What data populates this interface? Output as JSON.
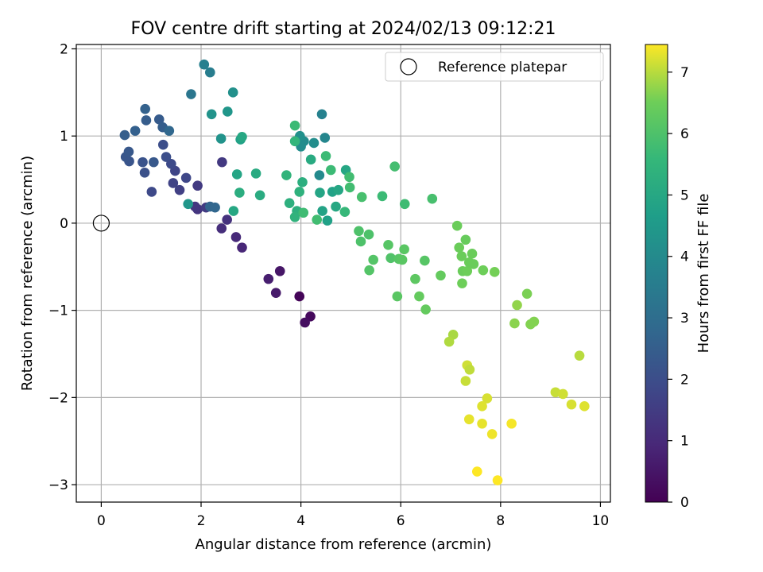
{
  "chart_data": {
    "type": "scatter",
    "title": "FOV centre drift starting at 2024/02/13 09:12:21",
    "xlabel": "Angular distance from reference (arcmin)",
    "ylabel": "Rotation from reference (arcmin)",
    "colorbar_label": "Hours from first FF file",
    "xlim": [
      -0.5,
      10.2
    ],
    "ylim": [
      -3.2,
      2.05
    ],
    "clim": [
      0,
      7.45
    ],
    "colormap": "viridis",
    "grid": true,
    "legend_placement": "top-right",
    "xticks": [
      0,
      2,
      4,
      6,
      8,
      10
    ],
    "xtick_labels": [
      "0",
      "2",
      "4",
      "6",
      "8",
      "10"
    ],
    "yticks": [
      -3,
      -2,
      -1,
      0,
      1,
      2
    ],
    "ytick_labels": [
      "−3",
      "−2",
      "−1",
      "0",
      "1",
      "2"
    ],
    "cticks": [
      0,
      1,
      2,
      3,
      4,
      5,
      6,
      7
    ],
    "ctick_labels": [
      "0",
      "1",
      "2",
      "3",
      "4",
      "5",
      "6",
      "7"
    ],
    "reference": {
      "label": "Reference platepar",
      "x": 0,
      "y": 0
    },
    "points": [
      [
        3.97,
        -0.84,
        0.1
      ],
      [
        4.19,
        -1.07,
        0.2
      ],
      [
        4.08,
        -1.14,
        0.3
      ],
      [
        3.58,
        -0.55,
        0.5
      ],
      [
        3.5,
        -0.8,
        0.6
      ],
      [
        3.35,
        -0.64,
        0.7
      ],
      [
        2.82,
        -0.28,
        0.9
      ],
      [
        2.7,
        -0.16,
        1.0
      ],
      [
        2.41,
        -0.06,
        1.1
      ],
      [
        2.52,
        0.04,
        1.2
      ],
      [
        1.93,
        0.16,
        1.3
      ],
      [
        1.88,
        0.19,
        1.35
      ],
      [
        2.42,
        0.7,
        1.4
      ],
      [
        1.93,
        0.43,
        1.45
      ],
      [
        2.1,
        0.18,
        1.5
      ],
      [
        1.57,
        0.38,
        1.6
      ],
      [
        1.44,
        0.46,
        1.7
      ],
      [
        1.48,
        0.6,
        1.75
      ],
      [
        1.7,
        0.52,
        1.8
      ],
      [
        1.01,
        0.36,
        1.85
      ],
      [
        1.4,
        0.68,
        1.9
      ],
      [
        1.3,
        0.76,
        2.0
      ],
      [
        1.24,
        0.9,
        2.0
      ],
      [
        0.87,
        0.58,
        2.1
      ],
      [
        0.83,
        0.7,
        2.15
      ],
      [
        0.56,
        0.71,
        2.2
      ],
      [
        0.49,
        0.76,
        2.25
      ],
      [
        0.55,
        0.82,
        2.3
      ],
      [
        1.05,
        0.7,
        2.3
      ],
      [
        1.16,
        1.19,
        2.4
      ],
      [
        0.9,
        1.18,
        2.45
      ],
      [
        1.23,
        1.1,
        2.5
      ],
      [
        0.47,
        1.01,
        2.5
      ],
      [
        0.68,
        1.06,
        2.55
      ],
      [
        0.88,
        1.31,
        2.6
      ],
      [
        2.18,
        0.19,
        2.7
      ],
      [
        2.28,
        0.18,
        2.75
      ],
      [
        1.36,
        1.06,
        2.8
      ],
      [
        1.8,
        1.48,
        3.3
      ],
      [
        2.06,
        1.82,
        3.6
      ],
      [
        2.18,
        1.73,
        3.55
      ],
      [
        4.42,
        1.25,
        3.7
      ],
      [
        4.48,
        0.98,
        3.85
      ],
      [
        4.26,
        0.92,
        4.1
      ],
      [
        4.06,
        0.94,
        4.05
      ],
      [
        4.37,
        0.55,
        4.0
      ],
      [
        4.0,
        0.88,
        4.1
      ],
      [
        3.98,
        1.0,
        4.2
      ],
      [
        2.64,
        1.5,
        4.2
      ],
      [
        2.21,
        1.25,
        4.3
      ],
      [
        2.4,
        0.97,
        4.3
      ],
      [
        2.53,
        1.28,
        4.4
      ],
      [
        1.74,
        0.22,
        4.4
      ],
      [
        2.79,
        0.96,
        4.8
      ],
      [
        2.72,
        0.56,
        4.9
      ],
      [
        2.65,
        0.14,
        5.0
      ],
      [
        2.82,
        0.99,
        5.0
      ],
      [
        3.1,
        0.57,
        5.1
      ],
      [
        3.18,
        0.32,
        5.15
      ],
      [
        2.77,
        0.35,
        5.2
      ],
      [
        4.38,
        0.35,
        4.9
      ],
      [
        4.43,
        0.14,
        4.85
      ],
      [
        4.53,
        0.03,
        4.75
      ],
      [
        4.63,
        0.36,
        4.8
      ],
      [
        4.75,
        0.38,
        4.95
      ],
      [
        4.9,
        0.61,
        4.95
      ],
      [
        4.7,
        0.19,
        5.0
      ],
      [
        4.2,
        0.73,
        5.1
      ],
      [
        4.03,
        0.47,
        5.25
      ],
      [
        3.92,
        0.14,
        5.3
      ],
      [
        3.88,
        0.07,
        5.4
      ],
      [
        3.97,
        0.36,
        5.35
      ],
      [
        3.77,
        0.23,
        5.3
      ],
      [
        3.71,
        0.55,
        5.45
      ],
      [
        3.88,
        0.94,
        5.5
      ],
      [
        3.88,
        1.12,
        5.7
      ],
      [
        4.05,
        0.12,
        5.75
      ],
      [
        4.32,
        0.04,
        5.8
      ],
      [
        4.5,
        0.77,
        5.7
      ],
      [
        4.6,
        0.61,
        5.7
      ],
      [
        4.88,
        0.13,
        5.6
      ],
      [
        4.97,
        0.53,
        5.8
      ],
      [
        4.98,
        0.41,
        5.8
      ],
      [
        5.16,
        -0.09,
        6.0
      ],
      [
        5.2,
        -0.21,
        6.0
      ],
      [
        5.22,
        0.3,
        5.9
      ],
      [
        5.36,
        -0.13,
        6.0
      ],
      [
        5.63,
        0.31,
        5.7
      ],
      [
        5.88,
        0.65,
        5.85
      ],
      [
        6.08,
        0.22,
        5.75
      ],
      [
        6.63,
        0.28,
        5.9
      ],
      [
        5.37,
        -0.54,
        6.1
      ],
      [
        5.45,
        -0.42,
        6.1
      ],
      [
        5.75,
        -0.25,
        6.15
      ],
      [
        5.8,
        -0.4,
        6.05
      ],
      [
        5.93,
        -0.84,
        6.2
      ],
      [
        5.96,
        -0.41,
        6.15
      ],
      [
        6.03,
        -0.42,
        6.2
      ],
      [
        6.07,
        -0.3,
        6.2
      ],
      [
        6.29,
        -0.64,
        6.25
      ],
      [
        6.37,
        -0.84,
        6.35
      ],
      [
        6.48,
        -0.43,
        6.15
      ],
      [
        6.5,
        -0.99,
        6.35
      ],
      [
        6.8,
        -0.6,
        6.35
      ],
      [
        7.13,
        -0.03,
        6.45
      ],
      [
        7.17,
        -0.28,
        6.45
      ],
      [
        7.22,
        -0.38,
        6.45
      ],
      [
        7.24,
        -0.55,
        6.45
      ],
      [
        7.3,
        -0.19,
        6.4
      ],
      [
        7.33,
        -0.55,
        6.5
      ],
      [
        7.37,
        -0.45,
        6.45
      ],
      [
        7.43,
        -0.35,
        6.45
      ],
      [
        7.46,
        -0.47,
        6.45
      ],
      [
        7.65,
        -0.54,
        6.5
      ],
      [
        7.88,
        -0.56,
        6.55
      ],
      [
        7.23,
        -0.69,
        6.5
      ],
      [
        8.33,
        -0.94,
        6.75
      ],
      [
        8.53,
        -0.81,
        6.6
      ],
      [
        8.28,
        -1.15,
        6.7
      ],
      [
        8.6,
        -1.16,
        6.65
      ],
      [
        8.67,
        -1.13,
        6.65
      ],
      [
        7.05,
        -1.28,
        6.9
      ],
      [
        6.97,
        -1.36,
        6.95
      ],
      [
        7.3,
        -1.81,
        7.1
      ],
      [
        7.33,
        -1.63,
        7.15
      ],
      [
        7.38,
        -1.68,
        7.05
      ],
      [
        7.73,
        -2.01,
        7.2
      ],
      [
        7.63,
        -2.1,
        7.25
      ],
      [
        9.1,
        -1.94,
        7.1
      ],
      [
        9.25,
        -1.96,
        7.15
      ],
      [
        9.58,
        -1.52,
        7.0
      ],
      [
        9.42,
        -2.08,
        7.2
      ],
      [
        9.68,
        -2.1,
        7.25
      ],
      [
        7.37,
        -2.25,
        7.3
      ],
      [
        7.63,
        -2.3,
        7.3
      ],
      [
        7.83,
        -2.42,
        7.35
      ],
      [
        8.22,
        -2.3,
        7.4
      ],
      [
        7.53,
        -2.85,
        7.45
      ],
      [
        7.94,
        -2.95,
        7.45
      ]
    ]
  }
}
